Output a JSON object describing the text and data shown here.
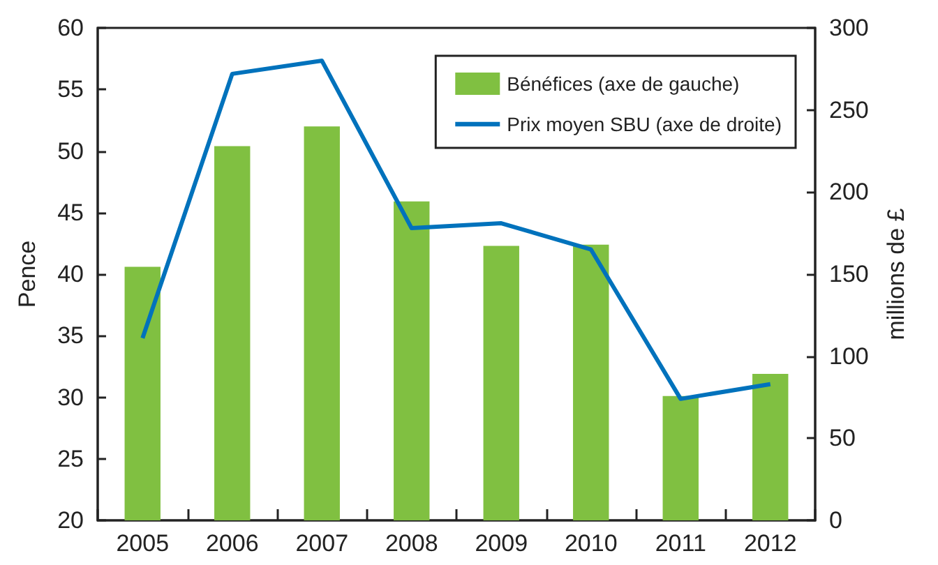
{
  "chart_data": {
    "type": "bar",
    "ylabel": "Pence",
    "y2label": "millions de £",
    "categories": [
      "2005",
      "2006",
      "2007",
      "2008",
      "2009",
      "2010",
      "2011",
      "2012"
    ],
    "series": [
      {
        "name": "Bénéfices (axe de gauche)",
        "color": "#80c041",
        "values": [
          40.6,
          50.4,
          52.0,
          45.9,
          42.3,
          42.4,
          30.1,
          31.9
        ]
      },
      {
        "name": "Prix moyen SBU (axe de droite)",
        "type": "line",
        "axis": "y2",
        "color": "#0072bc",
        "values": [
          111,
          272,
          280,
          178,
          181,
          165,
          74,
          83
        ]
      }
    ],
    "ylim": [
      20,
      60
    ],
    "yticks": [
      20,
      25,
      30,
      35,
      40,
      45,
      50,
      55,
      60
    ],
    "y2lim": [
      0,
      300
    ],
    "y2ticks": [
      0,
      50,
      100,
      150,
      200,
      250,
      300
    ],
    "legend": "top right",
    "grid": false,
    "marker": "none",
    "line_style": "solid"
  }
}
